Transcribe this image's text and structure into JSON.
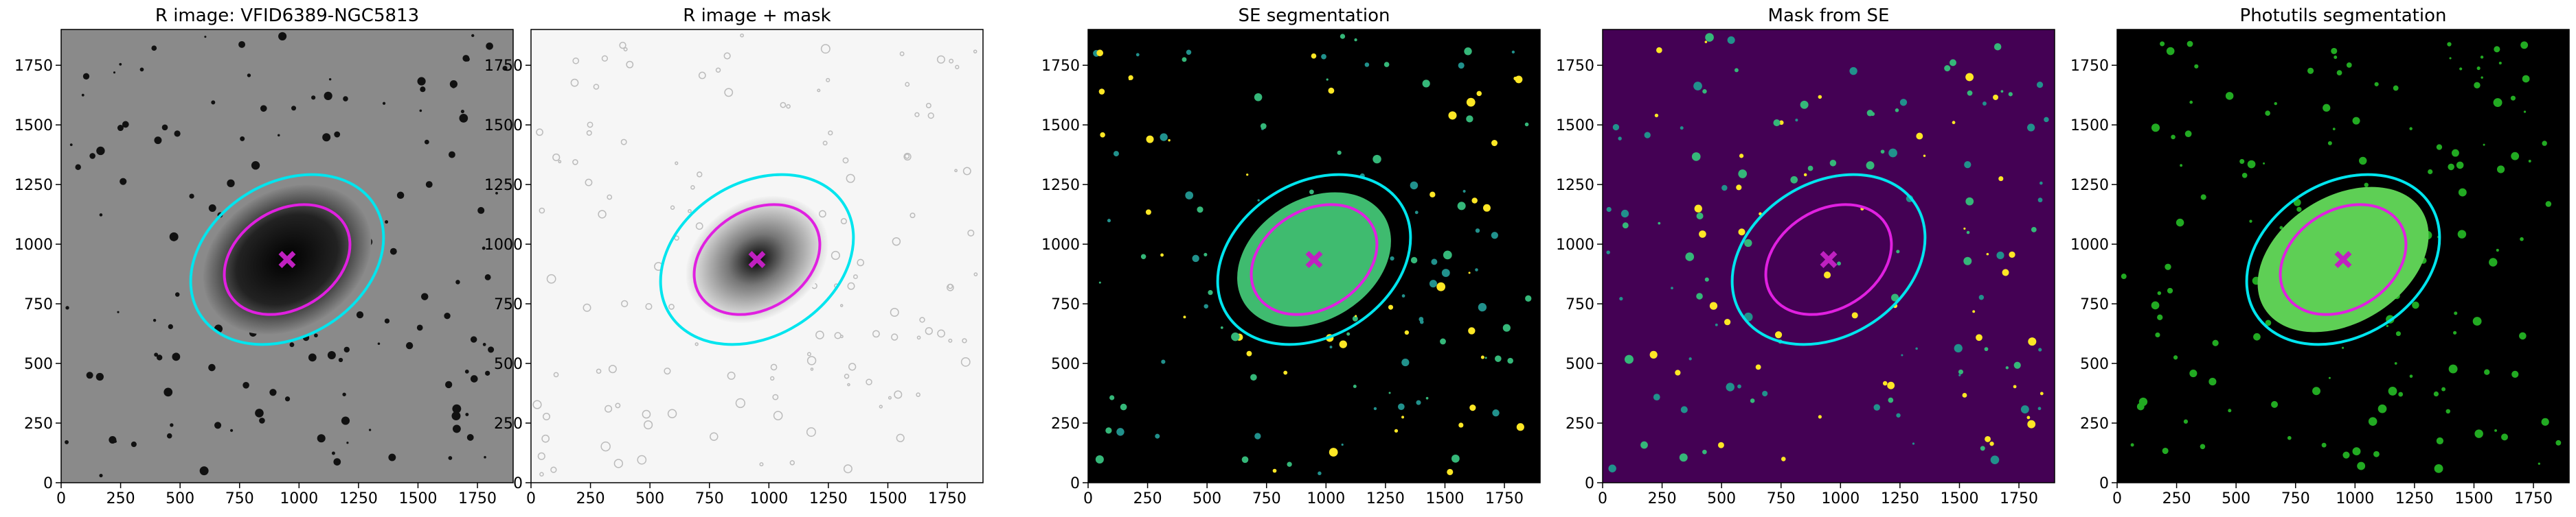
{
  "panels": [
    {
      "title": "R image: VFID6389-NGC5813",
      "xlim": [
        0,
        1900
      ],
      "ylim": [
        0,
        1900
      ],
      "xticks": [
        0,
        250,
        500,
        750,
        1000,
        1250,
        1500,
        1750
      ],
      "yticks": [
        0,
        250,
        500,
        750,
        1000,
        1250,
        1500,
        1750
      ]
    },
    {
      "title": "R image + mask",
      "xlim": [
        0,
        1900
      ],
      "ylim": [
        0,
        1900
      ],
      "xticks": [
        0,
        250,
        500,
        750,
        1000,
        1250,
        1500,
        1750
      ],
      "yticks": [
        0,
        250,
        500,
        750,
        1000,
        1250,
        1500,
        1750
      ]
    },
    {
      "title": "SE segmentation",
      "xlim": [
        0,
        1900
      ],
      "ylim": [
        0,
        1900
      ],
      "xticks": [
        0,
        250,
        500,
        750,
        1000,
        1250,
        1500,
        1750
      ],
      "yticks": [
        0,
        250,
        500,
        750,
        1000,
        1250,
        1500,
        1750
      ]
    },
    {
      "title": "Mask from SE",
      "xlim": [
        0,
        1900
      ],
      "ylim": [
        0,
        1900
      ],
      "xticks": [
        0,
        250,
        500,
        750,
        1000,
        1250,
        1500,
        1750
      ],
      "yticks": [
        0,
        250,
        500,
        750,
        1000,
        1250,
        1500,
        1750
      ]
    },
    {
      "title": "Photutils segmentation",
      "xlim": [
        0,
        1900
      ],
      "ylim": [
        0,
        1900
      ],
      "xticks": [
        0,
        250,
        500,
        750,
        1000,
        1250,
        1500,
        1750
      ],
      "yticks": [
        0,
        250,
        500,
        750,
        1000,
        1250,
        1500,
        1750
      ]
    }
  ]
}
